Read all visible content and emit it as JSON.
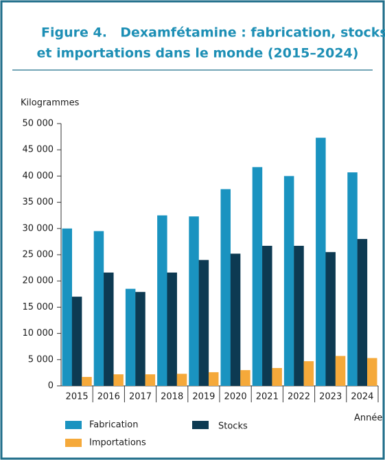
{
  "chart_data": {
    "type": "bar",
    "figure": "Figure 4.",
    "title": [
      "Dexamfétamine : fabrication, stocks",
      "et importations dans le monde (2015–2024)"
    ],
    "y_label": "Kilogrammes",
    "x_label": "Année",
    "categories": [
      "2015",
      "2016",
      "2017",
      "2018",
      "2019",
      "2020",
      "2021",
      "2022",
      "2023",
      "2024"
    ],
    "series": [
      {
        "name": "Fabrication",
        "color": "#1a93c0",
        "values": [
          30000,
          29500,
          18500,
          32500,
          32300,
          37500,
          41700,
          40000,
          47300,
          40700
        ]
      },
      {
        "name": "Stocks",
        "color": "#0d3a52",
        "values": [
          17000,
          21600,
          17900,
          21600,
          24000,
          25200,
          26700,
          26700,
          25500,
          28000
        ]
      },
      {
        "name": "Importations",
        "color": "#f5a93a",
        "values": [
          1700,
          2200,
          2200,
          2300,
          2600,
          3000,
          3400,
          4700,
          5700,
          5300
        ]
      }
    ],
    "ylim": [
      0,
      50000
    ],
    "yticks": [
      0,
      {
        "value": 5000,
        "label": "5 000"
      },
      {
        "value": 10000,
        "label": "10 000"
      },
      {
        "value": 15000,
        "label": "15 000"
      },
      {
        "value": 20000,
        "label": "20 000"
      },
      {
        "value": 25000,
        "label": "25 000"
      },
      {
        "value": 30000,
        "label": "30 000"
      },
      {
        "value": 35000,
        "label": "35 000"
      },
      {
        "value": 40000,
        "label": "40 000"
      },
      {
        "value": 45000,
        "label": "45 000"
      },
      {
        "value": 50000,
        "label": "50 000"
      }
    ],
    "grid": false
  }
}
